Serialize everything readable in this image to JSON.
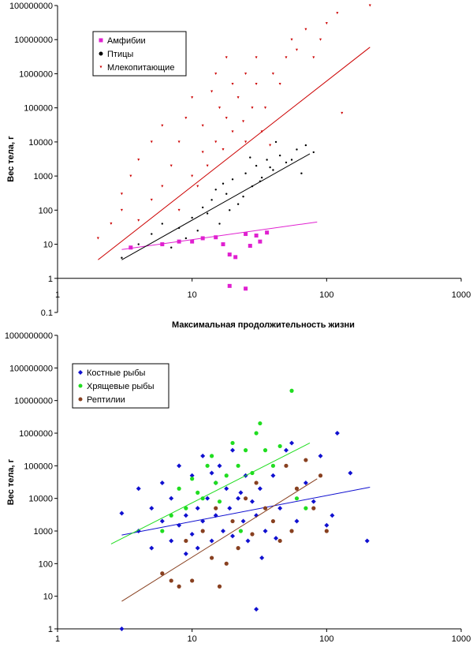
{
  "chart_data": [
    {
      "type": "scatter",
      "id": "top",
      "xscale": "log",
      "yscale": "log",
      "xlim": [
        1,
        1000
      ],
      "ylim": [
        0.1,
        100000000
      ],
      "xticks": [
        "1",
        "10",
        "100",
        "1000"
      ],
      "yticks": [
        "0.1",
        "1",
        "10",
        "100",
        "1000",
        "10000",
        "100000",
        "1000000",
        "10000000",
        "100000000"
      ],
      "ylabel": "Вес тела, г",
      "xlabel": "Максимальная продолжительность жизни",
      "legend": [
        "Амфибии",
        "Птицы",
        "Млекопитающие"
      ],
      "series": [
        {
          "name": "Амфибии",
          "color": "#e020d0",
          "marker": "square",
          "points": [
            [
              3.5,
              8
            ],
            [
              6,
              10
            ],
            [
              8,
              12
            ],
            [
              10,
              12
            ],
            [
              12,
              15
            ],
            [
              15,
              16
            ],
            [
              17,
              10
            ],
            [
              19,
              5
            ],
            [
              21,
              4.2
            ],
            [
              25,
              20
            ],
            [
              27,
              9
            ],
            [
              30,
              18
            ],
            [
              32,
              12
            ],
            [
              36,
              22
            ],
            [
              19,
              0.6
            ],
            [
              25,
              0.5
            ]
          ],
          "trend": [
            [
              3,
              7
            ],
            [
              85,
              45
            ]
          ]
        },
        {
          "name": "Птицы",
          "color": "#000000",
          "marker": "dot",
          "points": [
            [
              3,
              4
            ],
            [
              4,
              10
            ],
            [
              5,
              20
            ],
            [
              6,
              40
            ],
            [
              7,
              8
            ],
            [
              8,
              30
            ],
            [
              10,
              60
            ],
            [
              12,
              120
            ],
            [
              14,
              200
            ],
            [
              16,
              40
            ],
            [
              18,
              300
            ],
            [
              20,
              800
            ],
            [
              22,
              150
            ],
            [
              25,
              1200
            ],
            [
              28,
              500
            ],
            [
              30,
              2000
            ],
            [
              33,
              900
            ],
            [
              36,
              3000
            ],
            [
              40,
              1500
            ],
            [
              45,
              4000
            ],
            [
              50,
              2500
            ],
            [
              60,
              6000
            ],
            [
              70,
              8000
            ],
            [
              80,
              5000
            ],
            [
              9,
              15
            ],
            [
              11,
              25
            ],
            [
              13,
              80
            ],
            [
              15,
              400
            ],
            [
              17,
              600
            ],
            [
              19,
              100
            ],
            [
              24,
              250
            ],
            [
              27,
              3500
            ],
            [
              32,
              700
            ],
            [
              38,
              1800
            ],
            [
              42,
              10000
            ],
            [
              55,
              3000
            ],
            [
              65,
              1200
            ]
          ],
          "trend": [
            [
              3,
              3.5
            ],
            [
              75,
              4500
            ]
          ]
        },
        {
          "name": "Млекопитающие",
          "color": "#cc0000",
          "marker": "tri",
          "points": [
            [
              2,
              15
            ],
            [
              2.5,
              40
            ],
            [
              3,
              100
            ],
            [
              3,
              300
            ],
            [
              3.5,
              1000
            ],
            [
              4,
              50
            ],
            [
              4,
              3000
            ],
            [
              5,
              200
            ],
            [
              5,
              10000
            ],
            [
              6,
              500
            ],
            [
              6,
              30000
            ],
            [
              7,
              2000
            ],
            [
              8,
              100
            ],
            [
              8,
              10000
            ],
            [
              9,
              50000
            ],
            [
              10,
              1000
            ],
            [
              10,
              200000
            ],
            [
              12,
              5000
            ],
            [
              12,
              30000
            ],
            [
              14,
              300000
            ],
            [
              15,
              10000
            ],
            [
              15,
              1000000
            ],
            [
              16,
              100000
            ],
            [
              18,
              50000
            ],
            [
              18,
              3000000
            ],
            [
              20,
              500000
            ],
            [
              20,
              20000
            ],
            [
              22,
              200000
            ],
            [
              25,
              1000000
            ],
            [
              25,
              10000
            ],
            [
              28,
              100000
            ],
            [
              30,
              3000000
            ],
            [
              30,
              500000
            ],
            [
              35,
              100000
            ],
            [
              40,
              1000000
            ],
            [
              45,
              500000
            ],
            [
              50,
              3000000
            ],
            [
              55,
              10000000
            ],
            [
              60,
              5000000
            ],
            [
              70,
              20000000
            ],
            [
              80,
              3000000
            ],
            [
              90,
              10000000
            ],
            [
              100,
              30000000
            ],
            [
              120,
              60000000
            ],
            [
              130,
              70000
            ],
            [
              210,
              100000000
            ],
            [
              11,
              500
            ],
            [
              13,
              2000
            ],
            [
              17,
              6000
            ],
            [
              24,
              40000
            ],
            [
              33,
              20000
            ],
            [
              38,
              8000
            ]
          ],
          "trend": [
            [
              2,
              3.5
            ],
            [
              210,
              6000000
            ]
          ]
        }
      ]
    },
    {
      "type": "scatter",
      "id": "bottom",
      "xscale": "log",
      "yscale": "log",
      "xlim": [
        1,
        1000
      ],
      "ylim": [
        1,
        1000000000
      ],
      "xticks": [
        "1",
        "10",
        "100",
        "1000"
      ],
      "yticks": [
        "1",
        "10",
        "100",
        "1000",
        "10000",
        "100000",
        "1000000",
        "10000000",
        "100000000",
        "1000000000"
      ],
      "ylabel": "Вес тела, г",
      "legend": [
        "Костные рыбы",
        "Хрящевые рыбы",
        "Рептилии"
      ],
      "series": [
        {
          "name": "Костные рыбы",
          "color": "#1010d0",
          "marker": "diamond",
          "points": [
            [
              3,
              1
            ],
            [
              3,
              3500
            ],
            [
              4,
              1000
            ],
            [
              4,
              20000
            ],
            [
              5,
              300
            ],
            [
              5,
              5000
            ],
            [
              6,
              2000
            ],
            [
              6,
              30000
            ],
            [
              7,
              500
            ],
            [
              7,
              10000
            ],
            [
              8,
              1500
            ],
            [
              8,
              100000
            ],
            [
              9,
              3000
            ],
            [
              9,
              200
            ],
            [
              10,
              50000
            ],
            [
              10,
              800
            ],
            [
              11,
              5000
            ],
            [
              12,
              200000
            ],
            [
              12,
              2000
            ],
            [
              13,
              10000
            ],
            [
              14,
              500
            ],
            [
              15,
              30000
            ],
            [
              15,
              3000
            ],
            [
              16,
              100000
            ],
            [
              17,
              1000
            ],
            [
              18,
              20000
            ],
            [
              19,
              5000
            ],
            [
              20,
              300000
            ],
            [
              20,
              700
            ],
            [
              22,
              10000
            ],
            [
              24,
              2000
            ],
            [
              25,
              50000
            ],
            [
              26,
              500
            ],
            [
              28,
              8000
            ],
            [
              30,
              4
            ],
            [
              30,
              3000
            ],
            [
              32,
              20000
            ],
            [
              35,
              1000
            ],
            [
              40,
              50000
            ],
            [
              45,
              5000
            ],
            [
              50,
              300000
            ],
            [
              55,
              500000
            ],
            [
              60,
              2000
            ],
            [
              70,
              30000
            ],
            [
              80,
              8000
            ],
            [
              90,
              200000
            ],
            [
              100,
              1500
            ],
            [
              110,
              3000
            ],
            [
              120,
              1000000
            ],
            [
              150,
              60000
            ],
            [
              200,
              500
            ],
            [
              11,
              300
            ],
            [
              14,
              60000
            ],
            [
              23,
              15000
            ],
            [
              33,
              150
            ],
            [
              42,
              600
            ]
          ],
          "trend": [
            [
              3,
              750
            ],
            [
              210,
              22000
            ]
          ]
        },
        {
          "name": "Хрящевые рыбы",
          "color": "#20dd20",
          "marker": "dot",
          "points": [
            [
              6,
              1000
            ],
            [
              7,
              3000
            ],
            [
              8,
              20000
            ],
            [
              9,
              5000
            ],
            [
              10,
              40000
            ],
            [
              11,
              15000
            ],
            [
              12,
              10000
            ],
            [
              13,
              100000
            ],
            [
              14,
              200000
            ],
            [
              15,
              30000
            ],
            [
              16,
              8000
            ],
            [
              18,
              50000
            ],
            [
              20,
              500000
            ],
            [
              22,
              100000
            ],
            [
              23,
              1000
            ],
            [
              25,
              300000
            ],
            [
              28,
              60000
            ],
            [
              30,
              1000000
            ],
            [
              32,
              2000000
            ],
            [
              35,
              300000
            ],
            [
              40,
              100000
            ],
            [
              45,
              400000
            ],
            [
              55,
              20000000
            ],
            [
              60,
              10000
            ],
            [
              70,
              5000
            ]
          ],
          "trend": [
            [
              2.5,
              400
            ],
            [
              75,
              500000
            ]
          ]
        },
        {
          "name": "Рептилии",
          "color": "#884020",
          "marker": "dot",
          "points": [
            [
              6,
              50
            ],
            [
              7,
              30
            ],
            [
              8,
              20
            ],
            [
              9,
              500
            ],
            [
              10,
              30
            ],
            [
              12,
              1000
            ],
            [
              14,
              150
            ],
            [
              15,
              5000
            ],
            [
              16,
              20
            ],
            [
              18,
              100
            ],
            [
              20,
              2000
            ],
            [
              22,
              300
            ],
            [
              25,
              10000
            ],
            [
              28,
              800
            ],
            [
              30,
              30000
            ],
            [
              35,
              5000
            ],
            [
              40,
              2000
            ],
            [
              45,
              500
            ],
            [
              50,
              100000
            ],
            [
              55,
              1000
            ],
            [
              60,
              20000
            ],
            [
              70,
              150000
            ],
            [
              80,
              5000
            ],
            [
              90,
              50000
            ],
            [
              100,
              1000
            ]
          ],
          "trend": [
            [
              3,
              7
            ],
            [
              85,
              40000
            ]
          ]
        }
      ]
    }
  ]
}
